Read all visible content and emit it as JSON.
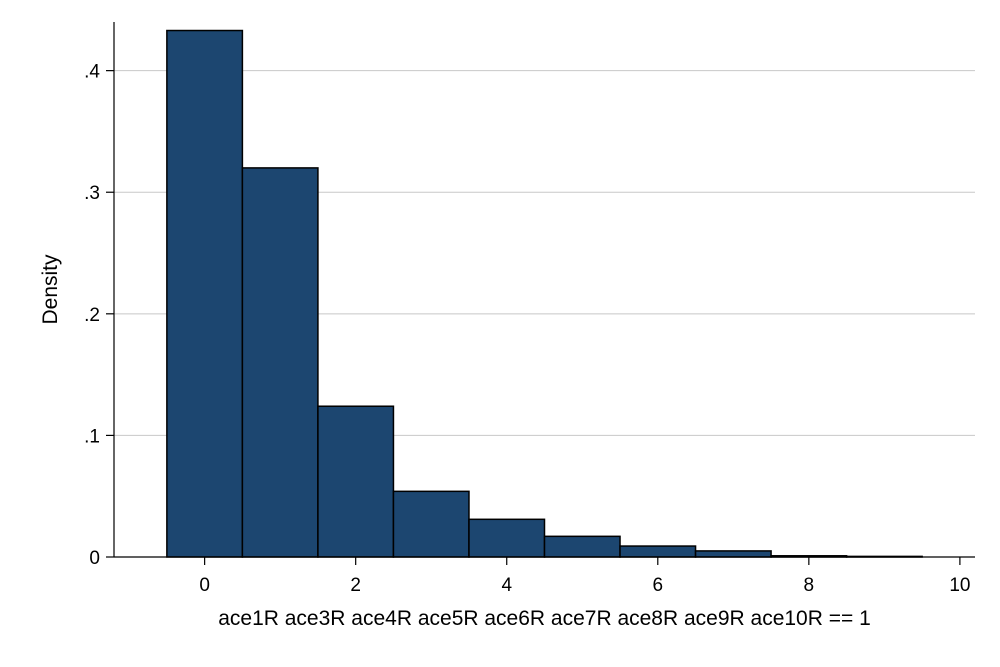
{
  "chart_data": {
    "type": "bar",
    "histogram": true,
    "bins": [
      {
        "x": 0,
        "density": 0.433
      },
      {
        "x": 1,
        "density": 0.32
      },
      {
        "x": 2,
        "density": 0.124
      },
      {
        "x": 3,
        "density": 0.054
      },
      {
        "x": 4,
        "density": 0.031
      },
      {
        "x": 5,
        "density": 0.017
      },
      {
        "x": 6,
        "density": 0.009
      },
      {
        "x": 7,
        "density": 0.005
      },
      {
        "x": 8,
        "density": 0.001
      },
      {
        "x": 9,
        "density": 0.0005
      }
    ],
    "bin_width": 1,
    "xlabel": "ace1R ace3R ace4R ace5R ace6R ace7R ace8R ace9R ace10R == 1",
    "ylabel": "Density",
    "xlim": [
      -1.2,
      10.2
    ],
    "ylim": [
      0,
      0.44
    ],
    "x_ticks": [
      0,
      2,
      4,
      6,
      8,
      10
    ],
    "x_tick_labels": [
      "0",
      "2",
      "4",
      "6",
      "8",
      "10"
    ],
    "y_ticks": [
      0,
      0.1,
      0.2,
      0.3,
      0.4
    ],
    "y_tick_labels": [
      "0",
      ".1",
      ".2",
      ".3",
      ".4"
    ],
    "grid": "horizontal",
    "bar_color": "#1c4670",
    "bar_edge_color": "#000000"
  }
}
